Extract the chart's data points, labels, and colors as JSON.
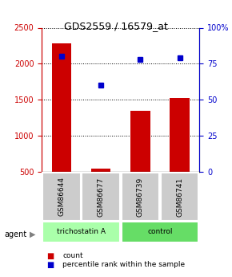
{
  "title": "GDS2559 / 16579_at",
  "samples": [
    "GSM86644",
    "GSM86677",
    "GSM86739",
    "GSM86741"
  ],
  "counts": [
    2280,
    540,
    1350,
    1530
  ],
  "percentiles": [
    80,
    60,
    78,
    79
  ],
  "groups": [
    "trichostatin A",
    "trichostatin A",
    "control",
    "control"
  ],
  "ylim_left": [
    500,
    2500
  ],
  "ylim_right": [
    0,
    100
  ],
  "bar_color": "#cc0000",
  "dot_color": "#0000cc",
  "grid_color": "#000000",
  "trichostatin_color": "#aaffaa",
  "control_color": "#66dd66",
  "sample_box_color": "#cccccc",
  "left_tick_color": "#cc0000",
  "right_tick_color": "#0000cc",
  "legend_count_color": "#cc0000",
  "legend_pct_color": "#0000cc"
}
